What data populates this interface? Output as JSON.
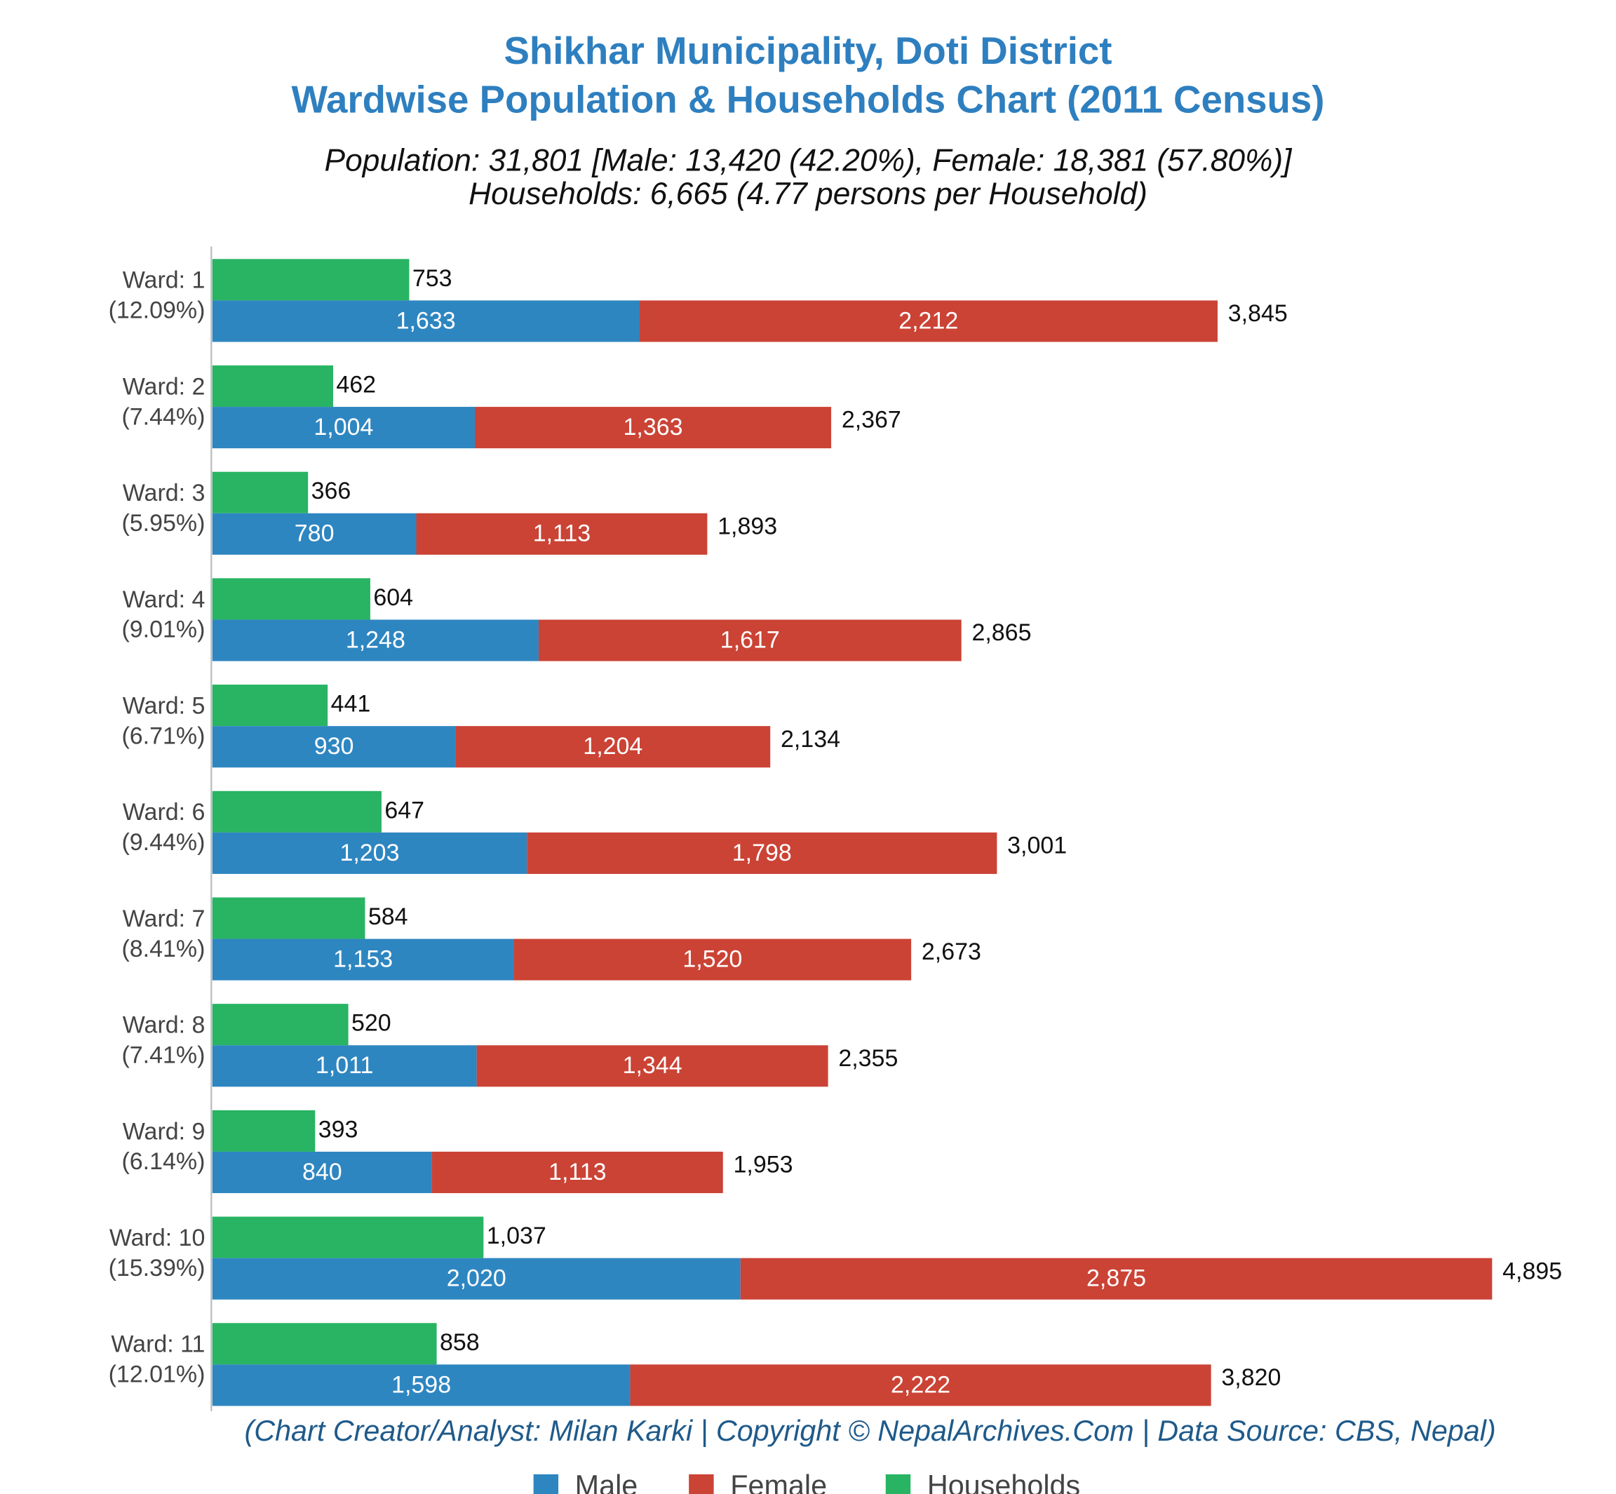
{
  "chart_data": {
    "type": "bar",
    "title": [
      "Shikhar Municipality, Doti District",
      "Wardwise Population & Households Chart (2011 Census)"
    ],
    "subtitle": [
      "Population: 31,801 [Male: 13,420 (42.20%), Female: 18,381 (57.80%)]",
      "Households: 6,665 (4.77 persons per Household)"
    ],
    "footer": "(Chart Creator/Analyst: Milan Karki | Copyright © NepalArchives.Com | Data Source: CBS, Nepal)",
    "categories": [
      "Ward: 1",
      "Ward: 2",
      "Ward: 3",
      "Ward: 4",
      "Ward: 5",
      "Ward: 6",
      "Ward: 7",
      "Ward: 8",
      "Ward: 9",
      "Ward: 10",
      "Ward: 11"
    ],
    "category_shares": [
      "(12.09%)",
      "(7.44%)",
      "(5.95%)",
      "(9.01%)",
      "(6.71%)",
      "(9.44%)",
      "(8.41%)",
      "(7.41%)",
      "(6.14%)",
      "(15.39%)",
      "(12.01%)"
    ],
    "series": [
      {
        "name": "Male",
        "color": "#2e86c1",
        "values": [
          1633,
          1004,
          780,
          1248,
          930,
          1203,
          1153,
          1011,
          840,
          2020,
          1598
        ],
        "value_labels": [
          "1,633",
          "1,004",
          "780",
          "1,248",
          "930",
          "1,203",
          "1,153",
          "1,011",
          "840",
          "2,020",
          "1,598"
        ]
      },
      {
        "name": "Female",
        "color": "#cb4335",
        "values": [
          2212,
          1363,
          1113,
          1617,
          1204,
          1798,
          1520,
          1344,
          1113,
          2875,
          2222
        ],
        "value_labels": [
          "2,212",
          "1,363",
          "1,113",
          "1,617",
          "1,204",
          "1,798",
          "1,520",
          "1,344",
          "1,113",
          "2,875",
          "2,222"
        ]
      },
      {
        "name": "Households",
        "color": "#28b463",
        "values": [
          753,
          462,
          366,
          604,
          441,
          647,
          584,
          520,
          393,
          1037,
          858
        ],
        "value_labels": [
          "753",
          "462",
          "366",
          "604",
          "441",
          "647",
          "584",
          "520",
          "393",
          "1,037",
          "858"
        ]
      }
    ],
    "totals": [
      3845,
      2367,
      1893,
      2865,
      2134,
      3001,
      2673,
      2355,
      1953,
      4895,
      3820
    ],
    "total_labels": [
      "3,845",
      "2,367",
      "1,893",
      "2,865",
      "2,134",
      "3,001",
      "2,673",
      "2,355",
      "1,953",
      "4,895",
      "3,820"
    ],
    "xlim": [
      0,
      5250
    ]
  }
}
